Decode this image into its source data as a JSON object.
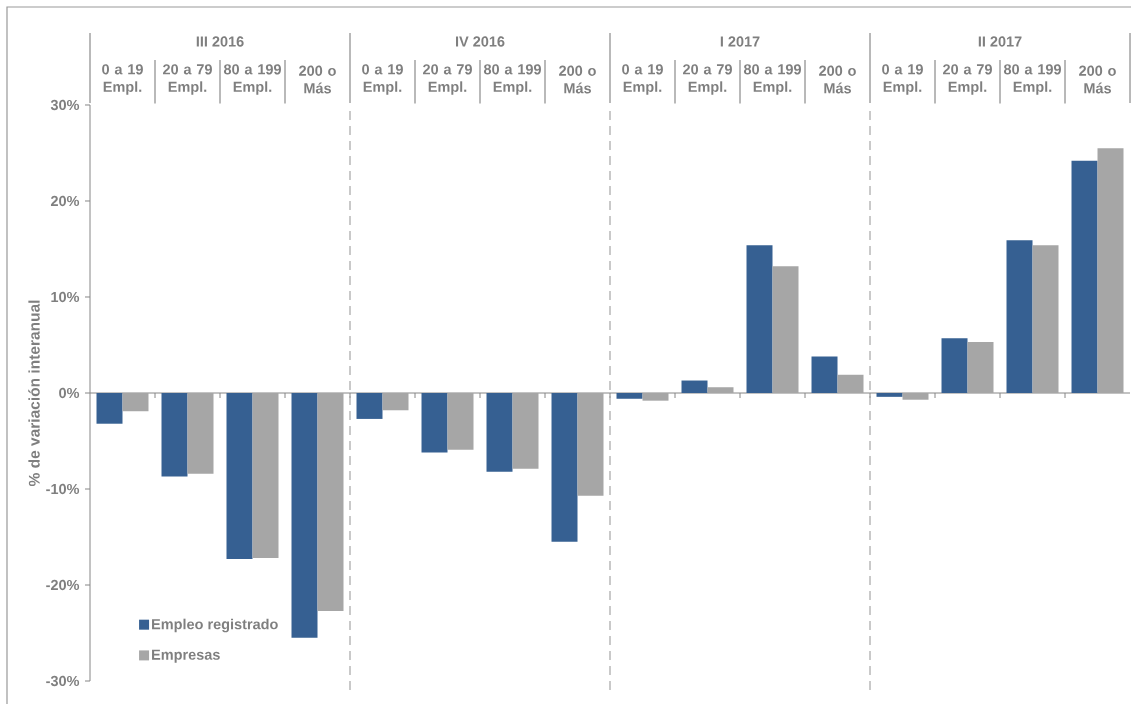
{
  "chart_data": {
    "type": "bar",
    "ylabel": "% de variación interanual",
    "annotations": [
      "III 2016",
      "IV 2016",
      "I 2017",
      "II 2017"
    ],
    "categories": [
      "0 a 19 Empl.",
      "20 a 79 Empl.",
      "80 a 199 Empl.",
      "200 o Más",
      "0 a 19 Empl.",
      "20 a 79 Empl.",
      "80 a 199 Empl.",
      "200 o Más",
      "0 a 19 Empl.",
      "20 a 79 Empl.",
      "80 a 199 Empl.",
      "200 o Más",
      "0 a 19 Empl.",
      "20 a 79 Empl.",
      "80 a 199 Empl.",
      "200 o Más"
    ],
    "series": [
      {
        "name": "Empleo registrado",
        "color": "#366092",
        "values": [
          -3.2,
          -8.7,
          -17.3,
          -25.5,
          -2.7,
          -6.2,
          -8.2,
          -15.5,
          -0.6,
          1.3,
          15.4,
          3.8,
          -0.4,
          5.7,
          15.9,
          24.2
        ]
      },
      {
        "name": "Empresas",
        "color": "#a6a6a6",
        "values": [
          -1.9,
          -8.4,
          -17.2,
          -22.7,
          -1.8,
          -5.9,
          -7.9,
          -10.7,
          -0.8,
          0.6,
          13.2,
          1.9,
          -0.7,
          5.3,
          15.4,
          25.5
        ]
      }
    ],
    "ylim": [
      -30,
      30
    ],
    "yticks": [
      {
        "value": -30,
        "label": "-30%"
      },
      {
        "value": -20,
        "label": "-20%"
      },
      {
        "value": -10,
        "label": "-10%"
      },
      {
        "value": 0,
        "label": "0%"
      },
      {
        "value": 10,
        "label": "10%"
      },
      {
        "value": 20,
        "label": "20%"
      },
      {
        "value": 30,
        "label": "30%"
      }
    ],
    "legend": "bottom left"
  }
}
